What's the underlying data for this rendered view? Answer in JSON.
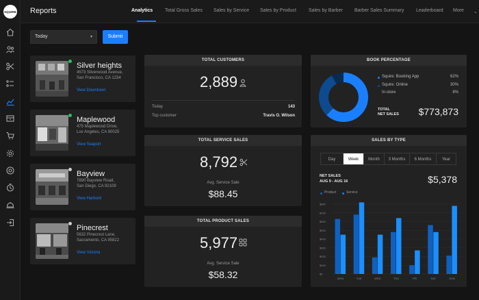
{
  "app": {
    "logo_text": "SQUIRE",
    "title": "Reports"
  },
  "nav_tabs": [
    {
      "label": "Analytics",
      "active": true
    },
    {
      "label": "Total Gross Sales"
    },
    {
      "label": "Sales by Service"
    },
    {
      "label": "Sales by Product"
    },
    {
      "label": "Sales by Barber"
    },
    {
      "label": "Barber Sales Summary"
    },
    {
      "label": "Leaderboard"
    },
    {
      "label": "More"
    }
  ],
  "sidebar_icons": [
    "home-icon",
    "users-icon",
    "scissors-icon",
    "list-icon",
    "analytics-icon",
    "inventory-icon",
    "cart-icon",
    "settings-icon",
    "support-icon",
    "clock-icon",
    "service-bell-icon",
    "logout-icon"
  ],
  "filter": {
    "selected": "Today",
    "submit_label": "Submit"
  },
  "stores": [
    {
      "name": "Silver heights",
      "address1": "4573 Silverwood Avenue,",
      "address2": "San Francisco, CA 1234",
      "link": "View Downtown",
      "status_color": "#22c55e"
    },
    {
      "name": "Maplewood",
      "address1": "475 Maplewood Drive,",
      "address2": "Los Angeles, CA 90025",
      "link": "View Seaport",
      "status_color": "#22c55e"
    },
    {
      "name": "Bayview",
      "address1": "7890 Bayview Road,",
      "address2": "San Diego, CA 92109",
      "link": "View Harbord",
      "status_color": "#cfcfcf"
    },
    {
      "name": "Pinecrest",
      "address1": "5632 Pinecrest Lane,",
      "address2": "Sacramento, CA 95822",
      "link": "View Victoria",
      "status_color": "#cfcfcf"
    }
  ],
  "total_customers": {
    "header": "TOTAL CUSTOMERS",
    "value": "2,889",
    "today_label": "Today",
    "today_value": "143",
    "top_label": "Top customer",
    "top_value": "Travis O. Wilson"
  },
  "total_service_sales": {
    "header": "TOTAL SERVICE SALES",
    "value": "8,792",
    "avg_label": "Avg. Service Sale",
    "avg_value": "$88.45"
  },
  "total_product_sales": {
    "header": "TOTAL PRODUCT SALES",
    "value": "5,977",
    "avg_label": "Avg. Service Sale",
    "avg_value": "$58.32"
  },
  "book_percentage": {
    "header": "BOOK PERCENTAGE",
    "slices": [
      {
        "label": "Squire: Booking App",
        "pct": "62%",
        "value": 62,
        "color": "#1a7fff"
      },
      {
        "label": "Squire: Online",
        "pct": "30%",
        "value": 30,
        "color": "#0d4a8f"
      },
      {
        "label": "In-store",
        "pct": "8%",
        "value": 8,
        "color": "#0a2a50"
      }
    ],
    "total_label_1": "TOTAL",
    "total_label_2": "NET SALES",
    "total_value": "$773,873"
  },
  "sales_by_type": {
    "header": "SALES BY TYPE",
    "periods": [
      "Day",
      "Week",
      "Month",
      "3 Months",
      "6 Months",
      "Year"
    ],
    "active_period": "Week",
    "net_label": "NET SALES",
    "range": "AUG 9 - AUG 16",
    "net_value": "$5,378",
    "legend": [
      "Product",
      "Service"
    ],
    "colors": {
      "product": "#1060c0",
      "service": "#1a8fff"
    }
  },
  "chart_data": {
    "type": "bar",
    "categories": [
      "MON",
      "TUE",
      "WED",
      "THU",
      "FRI",
      "SAT",
      "SUN"
    ],
    "yticks": [
      "$0",
      "$100",
      "$200",
      "$300",
      "$400",
      "$500",
      "$600",
      "$700",
      "$800"
    ],
    "ylim": [
      0,
      800
    ],
    "series": [
      {
        "name": "Product",
        "values": [
          630,
          680,
          190,
          480,
          100,
          560,
          210
        ]
      },
      {
        "name": "Service",
        "values": [
          450,
          820,
          450,
          640,
          270,
          480,
          780
        ]
      }
    ]
  }
}
